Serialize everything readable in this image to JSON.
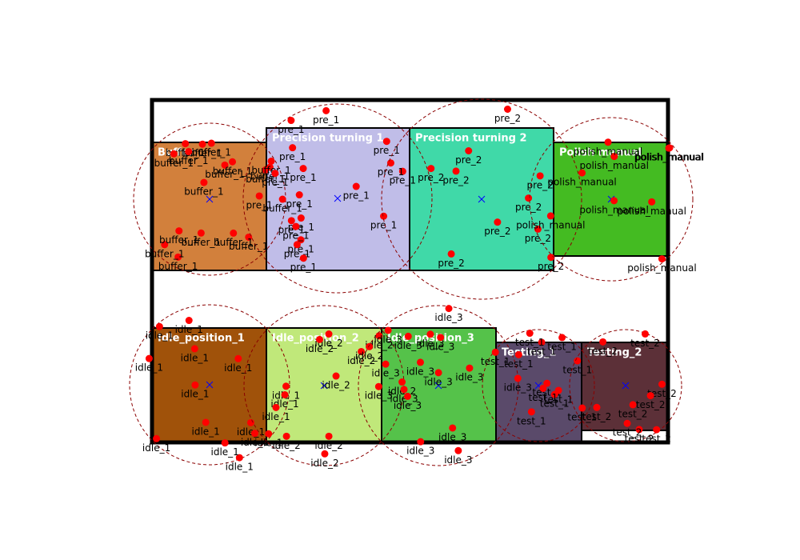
{
  "zones": [
    {
      "label": "Buffer",
      "points": [
        "buffer_1",
        "buffer_1",
        "buffer_1",
        "buffer_1",
        "buffer_1",
        "buffer_1",
        "buffer_1",
        "buffer_1",
        "buffer_1",
        "buffer_1",
        "buffer_1",
        "buffer_1",
        "buffer_1",
        "buffer_1",
        "buffer_1",
        "buffer_1",
        "buffer_1",
        "buffer_1"
      ]
    },
    {
      "label": "Precision turning 1",
      "points": [
        "pre_1",
        "pre_1",
        "pre_1",
        "pre_1",
        "pre_1",
        "pre_1",
        "pre_1",
        "pre_1",
        "pre_1",
        "pre_1",
        "pre_1",
        "pre_1",
        "pre_1",
        "pre_1",
        "pre_1",
        "pre_1",
        "pre_1",
        "pre_1"
      ]
    },
    {
      "label": "Precision turning 2",
      "points": [
        "pre_2",
        "pre_2",
        "pre_2",
        "pre_2",
        "pre_2",
        "pre_2",
        "pre_2",
        "pre_2",
        "pre_2",
        "pre_2"
      ]
    },
    {
      "label": "Polish manual",
      "points": [
        "polish_manual",
        "polish_manual",
        "polish_manual",
        "polish_manual",
        "polish_manual",
        "polish_manual",
        "polish_manual",
        "polish_manual",
        "polish_manual"
      ]
    },
    {
      "label": "Idle_position_1",
      "points": [
        "idle_1",
        "idle_1",
        "idle_1",
        "idle_1",
        "idle_1",
        "idle_1",
        "idle_1",
        "idle_1",
        "idle_1",
        "idle_1",
        "idle_1",
        "idle_1",
        "idle_1",
        "idle_1",
        "idle_1",
        "idle_1"
      ]
    },
    {
      "label": "Idle_position_2",
      "points": [
        "idle_2",
        "idle_2",
        "idle_2",
        "idle_2",
        "idle_2",
        "idle_2",
        "idle_2",
        "idle_2",
        "idle_2",
        "idle_2"
      ]
    },
    {
      "label": "Idle_position_3",
      "points": [
        "idle_3",
        "idle_3",
        "idle_3",
        "idle_3",
        "idle_3",
        "idle_3",
        "idle_3",
        "idle_3",
        "idle_3",
        "idle_3",
        "idle_3",
        "idle_3",
        "idle_3",
        "idle_3",
        "idle_3",
        "idle_3"
      ]
    },
    {
      "label": "Testing_1",
      "points": [
        "test_1",
        "test_1",
        "test_1",
        "test_1",
        "test_1",
        "test_1",
        "test_1",
        "test_1",
        "test_1",
        "test_1",
        "test_1",
        "test_1"
      ]
    },
    {
      "label": "Testing_2",
      "points": [
        "test_2",
        "test_2",
        "test_2",
        "test_2",
        "test_2",
        "test_2",
        "test_2",
        "test_2",
        "test_2"
      ]
    }
  ]
}
